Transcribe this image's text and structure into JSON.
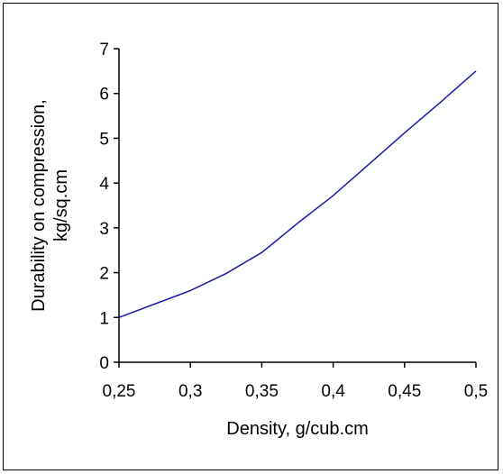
{
  "chart_data": {
    "type": "line",
    "xlabel": "Density, g/cub.cm",
    "ylabel_lines": [
      "Durability on compression,",
      "kg/sq.cm"
    ],
    "xlim": [
      0.25,
      0.5
    ],
    "ylim": [
      0,
      7
    ],
    "x_ticks": [
      0.25,
      0.3,
      0.35,
      0.4,
      0.45,
      0.5
    ],
    "x_tick_labels": [
      "0,25",
      "0,3",
      "0,35",
      "0,4",
      "0,45",
      "0,5"
    ],
    "y_ticks": [
      0,
      1,
      2,
      3,
      4,
      5,
      6,
      7
    ],
    "y_tick_labels": [
      "0",
      "1",
      "2",
      "3",
      "4",
      "5",
      "6",
      "7"
    ],
    "grid": false,
    "series": [
      {
        "color": "#1a1aa6",
        "x": [
          0.25,
          0.275,
          0.3,
          0.325,
          0.35,
          0.375,
          0.4,
          0.425,
          0.45,
          0.475,
          0.5
        ],
        "y": [
          1.0,
          1.3,
          1.6,
          1.98,
          2.45,
          3.1,
          3.72,
          4.42,
          5.12,
          5.8,
          6.5
        ]
      }
    ]
  }
}
